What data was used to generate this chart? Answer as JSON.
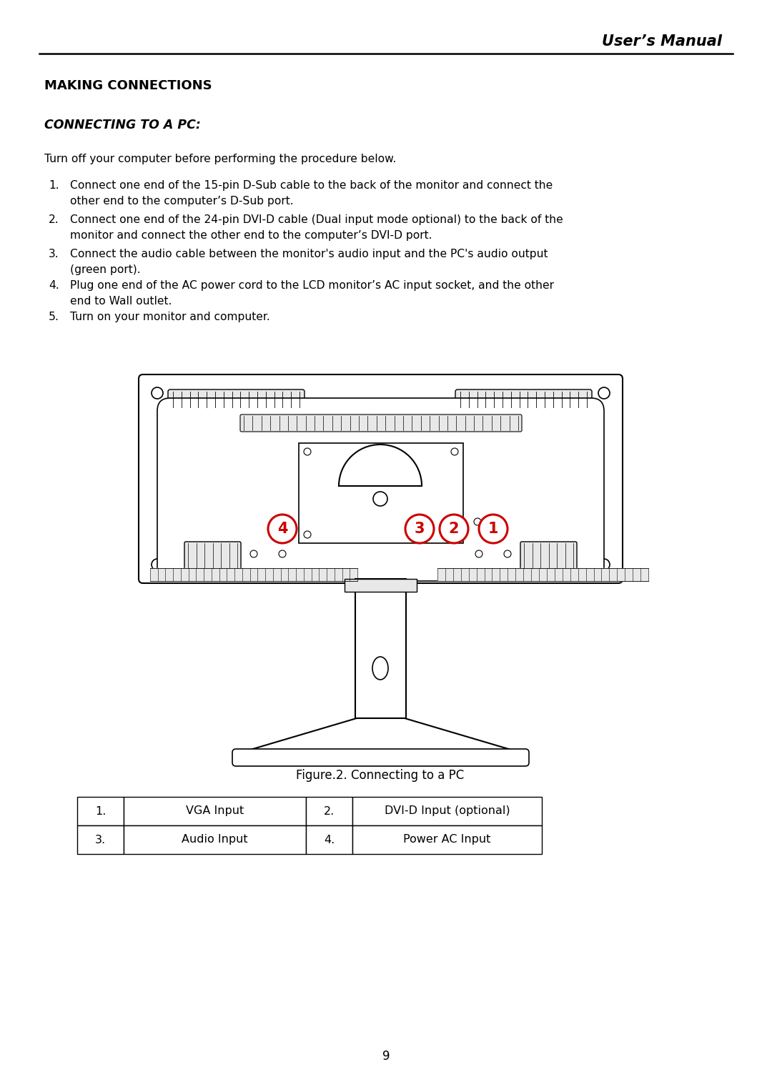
{
  "bg_color": "#ffffff",
  "header_text": "User’s Manual",
  "section_title": "MAKING CONNECTIONS",
  "subsection_title": "CONNECTING TO A PC:",
  "intro_text": "Turn off your computer before performing the procedure below.",
  "step1": "Connect one end of the 15-pin D-Sub cable to the back of the monitor and connect the",
  "step1b": "other end to the computer’s D-Sub port.",
  "step2": "Connect one end of the 24-pin DVI-D cable (Dual input mode optional) to the back of the",
  "step2b": "monitor and connect the other end to the computer’s DVI-D port.",
  "step3": "Connect the audio cable between the monitor's audio input and the PC's audio output",
  "step3b": "(green port).",
  "step4": "Plug one end of the AC power cord to the LCD monitor’s AC input socket, and the other",
  "step4b": "end to Wall outlet.",
  "step5": "Turn on your monitor and computer.",
  "figure_caption": "Figure.2. Connecting to a PC",
  "table_data": [
    [
      "1.",
      "VGA Input",
      "2.",
      "DVI-D Input (optional)"
    ],
    [
      "3.",
      "Audio Input",
      "4.",
      "Power AC Input"
    ]
  ],
  "page_number": "9",
  "line_color": "#000000",
  "text_color": "#000000",
  "red_color": "#cc0000",
  "gray_light": "#e8e8e8",
  "gray_mid": "#cccccc",
  "gray_dark": "#aaaaaa"
}
